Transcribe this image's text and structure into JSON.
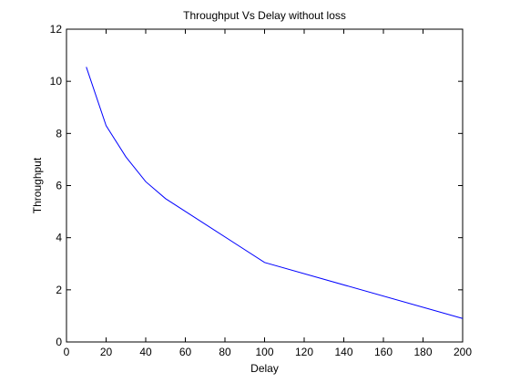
{
  "chart_data": {
    "type": "line",
    "title": "Throughput Vs Delay without loss",
    "xlabel": "Delay",
    "ylabel": "Throughput",
    "xlim": [
      0,
      200
    ],
    "ylim": [
      0,
      12
    ],
    "xticks": [
      0,
      20,
      40,
      60,
      80,
      100,
      120,
      140,
      160,
      180,
      200
    ],
    "yticks": [
      0,
      2,
      4,
      6,
      8,
      10,
      12
    ],
    "grid": false,
    "legend": "none",
    "series": [
      {
        "color": "#0000ff",
        "x": [
          10,
          20,
          30,
          40,
          50,
          100,
          200
        ],
        "y": [
          10.55,
          8.3,
          7.1,
          6.15,
          5.5,
          3.05,
          0.9
        ]
      }
    ]
  }
}
